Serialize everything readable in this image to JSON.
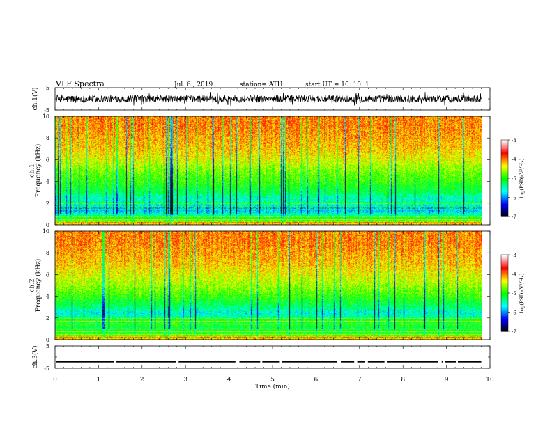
{
  "header": {
    "title": "VLF  Spectra",
    "date": "Jul.  6  , 2019",
    "station": "station= ATH",
    "start": "start  UT  =    10: 10: 1"
  },
  "chart_data": [
    {
      "type": "line",
      "name": "ch1-waveform",
      "ylabel": "ch.1(V)",
      "ylim": [
        -5,
        5
      ],
      "y_ticks": [
        "5",
        "-5"
      ],
      "xlim": [
        0,
        10
      ],
      "signal": {
        "center": 0,
        "band_min": -1.5,
        "band_max": 1.5,
        "spike_min": -3.5,
        "spike_max": 3.5,
        "until_min": 9.8
      }
    },
    {
      "type": "heatmap",
      "name": "ch1-spectrogram",
      "ylabel": "ch.1\nFrequency  (kHz)",
      "ylim": [
        0,
        10
      ],
      "y_ticks": [
        "0",
        "2",
        "4",
        "6",
        "8",
        "10"
      ],
      "xlim": [
        0,
        9.8
      ],
      "zlabel": "log(PSD)(V²/Hz)",
      "zlim": [
        -7,
        -3
      ],
      "z_ticks": [
        "-3",
        "-4",
        "-5",
        "-6",
        "-7"
      ],
      "profile_khz": [
        0.0,
        0.5,
        1.0,
        1.5,
        2.0,
        2.5,
        3.0,
        4.0,
        5.0,
        6.0,
        7.0,
        8.0,
        9.0,
        10.0
      ],
      "profile_log_psd": [
        -4.0,
        -5.0,
        -5.5,
        -5.9,
        -5.4,
        -5.5,
        -5.2,
        -4.9,
        -4.7,
        -4.4,
        -4.2,
        -4.1,
        -4.0,
        -4.0
      ]
    },
    {
      "type": "heatmap",
      "name": "ch2-spectrogram",
      "ylabel": "ch.2\nFrequency  (kHz)",
      "ylim": [
        0,
        10
      ],
      "y_ticks": [
        "0",
        "2",
        "4",
        "6",
        "8",
        "10"
      ],
      "xlim": [
        0,
        9.8
      ],
      "zlabel": "log(PSD)(V²/Hz)",
      "zlim": [
        -7,
        -3
      ],
      "z_ticks": [
        "-3",
        "-4",
        "-5",
        "-6",
        "-7"
      ],
      "profile_khz": [
        0.0,
        0.5,
        1.0,
        1.5,
        2.0,
        2.5,
        3.0,
        4.0,
        5.0,
        6.0,
        7.0,
        8.0,
        9.0,
        10.0
      ],
      "profile_log_psd": [
        -4.0,
        -5.0,
        -5.2,
        -5.0,
        -5.3,
        -5.6,
        -5.3,
        -4.9,
        -4.6,
        -4.4,
        -4.2,
        -4.1,
        -4.0,
        -4.0
      ]
    },
    {
      "type": "line",
      "name": "ch3-waveform",
      "ylabel": "ch.3(V)",
      "ylim": [
        -5,
        5
      ],
      "y_ticks": [
        "5",
        "-5"
      ],
      "xlim": [
        0,
        10
      ],
      "signal": {
        "center": -2,
        "band_min": -2.4,
        "band_max": -1.6,
        "until_min": 9.8
      }
    }
  ],
  "x_axis": {
    "label": "Time  (min)",
    "ticks": [
      "0",
      "1",
      "2",
      "3",
      "4",
      "5",
      "6",
      "7",
      "8",
      "9",
      "10"
    ]
  },
  "colors": {
    "scale": [
      "#000000",
      "#0000ff",
      "#00ffff",
      "#00ff00",
      "#ffff00",
      "#ff0000",
      "#ffffff"
    ],
    "trace": "#000000"
  }
}
